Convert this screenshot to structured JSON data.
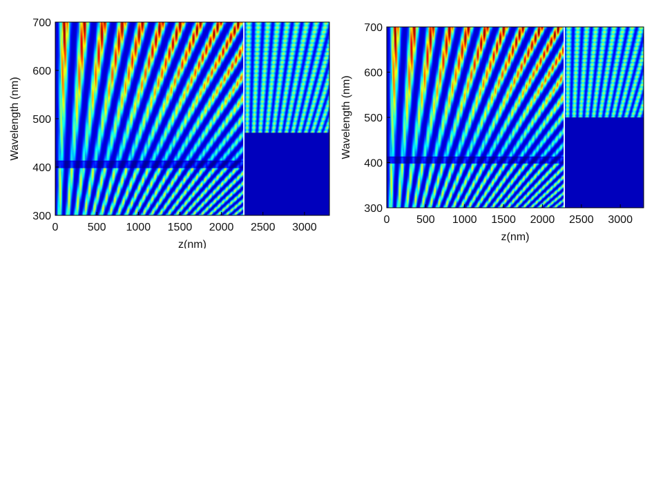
{
  "chart_data": [
    {
      "type": "heatmap",
      "title": "",
      "xlabel": "z(nm)",
      "ylabel": "Wavelength (nm)",
      "xlim": [
        0,
        3300
      ],
      "ylim": [
        300,
        700
      ],
      "x_ticks": [
        0,
        500,
        1000,
        1500,
        2000,
        2500,
        3000
      ],
      "y_ticks": [
        300,
        400,
        500,
        600,
        700
      ],
      "interface_z": 2270,
      "cutoff_wavelength": 470,
      "colormap": "jet",
      "grid": false,
      "legend": "none"
    },
    {
      "type": "heatmap",
      "title": "",
      "xlabel": "z(nm)",
      "ylabel": "Wavelength (nm)",
      "xlim": [
        0,
        3300
      ],
      "ylim": [
        300,
        700
      ],
      "x_ticks": [
        0,
        500,
        1000,
        1500,
        2000,
        2500,
        3000
      ],
      "y_ticks": [
        300,
        400,
        500,
        600,
        700
      ],
      "interface_z": 2280,
      "cutoff_wavelength": 500,
      "colormap": "jet",
      "grid": false,
      "legend": "none"
    }
  ]
}
